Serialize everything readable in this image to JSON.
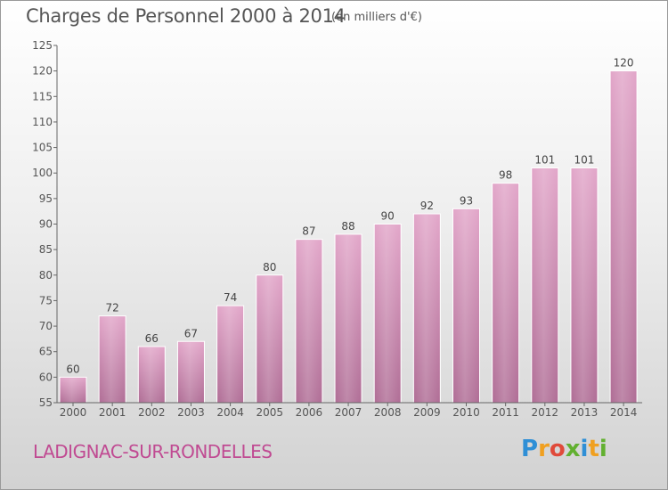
{
  "chart_data": {
    "type": "bar",
    "title": "Charges de Personnel 2000 à 2014",
    "subtitle": "(en milliers d'€)",
    "categories": [
      "2000",
      "2001",
      "2002",
      "2003",
      "2004",
      "2005",
      "2006",
      "2007",
      "2008",
      "2009",
      "2010",
      "2011",
      "2012",
      "2013",
      "2014"
    ],
    "values": [
      60,
      72,
      66,
      67,
      74,
      80,
      87,
      88,
      90,
      92,
      93,
      98,
      101,
      101,
      120
    ],
    "ylim": [
      55,
      125
    ],
    "yticks": [
      55,
      60,
      65,
      70,
      75,
      80,
      85,
      90,
      95,
      100,
      105,
      110,
      115,
      120,
      125
    ],
    "grid": false,
    "bar_color": "#d98cb8",
    "xlabel": "",
    "ylabel": ""
  },
  "commune_name": "LADIGNAC-SUR-RONDELLES",
  "logo": {
    "letters": [
      "P",
      "r",
      "o",
      "x",
      "i",
      "t",
      "i"
    ],
    "colors": [
      "#2f8fd6",
      "#f0a020",
      "#e04a3a",
      "#62b030",
      "#2f8fd6",
      "#f0a020",
      "#62b030"
    ]
  },
  "colors": {
    "text": "#555555",
    "commune": "#c04a92",
    "axis": "#666666"
  }
}
